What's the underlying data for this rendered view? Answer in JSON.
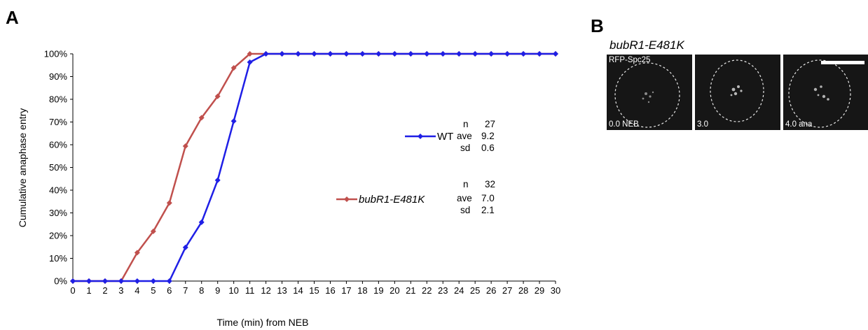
{
  "panel_a": {
    "letter": "A"
  },
  "panel_b": {
    "letter": "B",
    "title": "bubR1-E481K",
    "channel": "RFP-Spc25",
    "frames": [
      {
        "label": "0.0 NEB"
      },
      {
        "label": "3.0"
      },
      {
        "label": "4.0 ana"
      }
    ]
  },
  "chart_data": {
    "type": "line",
    "xlabel": "Time (min) from NEB",
    "ylabel": "Cumulative anaphase entry",
    "xlim": [
      0,
      30
    ],
    "ylim": [
      0,
      100
    ],
    "x_ticks": [
      0,
      1,
      2,
      3,
      4,
      5,
      6,
      7,
      8,
      9,
      10,
      11,
      12,
      13,
      14,
      15,
      16,
      17,
      18,
      19,
      20,
      21,
      22,
      23,
      24,
      25,
      26,
      27,
      28,
      29,
      30
    ],
    "y_ticks": [
      "0%",
      "10%",
      "20%",
      "30%",
      "40%",
      "50%",
      "60%",
      "70%",
      "80%",
      "90%",
      "100%"
    ],
    "grid": false,
    "x": [
      0,
      1,
      2,
      3,
      4,
      5,
      6,
      7,
      8,
      9,
      10,
      11,
      12,
      13,
      14,
      15,
      16,
      17,
      18,
      19,
      20,
      21,
      22,
      23,
      24,
      25,
      26,
      27,
      28,
      29,
      30
    ],
    "series": [
      {
        "name": "WT",
        "color": "#1f1fe6",
        "marker": "diamond",
        "values": [
          0,
          0,
          0,
          0,
          0,
          0,
          0,
          14.8,
          25.9,
          44.4,
          70.4,
          96.3,
          100,
          100,
          100,
          100,
          100,
          100,
          100,
          100,
          100,
          100,
          100,
          100,
          100,
          100,
          100,
          100,
          100,
          100,
          100
        ],
        "stats": {
          "n_label": "n",
          "n": "27",
          "ave_label": "ave",
          "ave": "9.2",
          "sd_label": "sd",
          "sd": "0.6"
        }
      },
      {
        "name": "bubR1-E481K",
        "color": "#c0504d",
        "marker": "diamond",
        "values": [
          0,
          0,
          0,
          0,
          12.5,
          21.9,
          34.4,
          59.4,
          71.9,
          81.3,
          93.8,
          100,
          100,
          100,
          100,
          100,
          100,
          100,
          100,
          100,
          100,
          100,
          100,
          100,
          100,
          100,
          100,
          100,
          100,
          100,
          100
        ],
        "stats": {
          "n_label": "n",
          "n": "32",
          "ave_label": "ave",
          "ave": "7.0",
          "sd_label": "sd",
          "sd": "2.1"
        }
      }
    ]
  }
}
